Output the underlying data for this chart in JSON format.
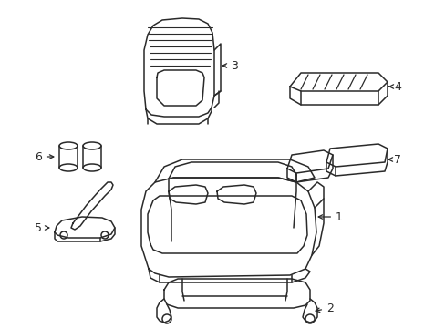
{
  "background_color": "#ffffff",
  "line_color": "#2a2a2a",
  "line_width": 1.1,
  "label_fontsize": 9,
  "figsize": [
    4.89,
    3.6
  ],
  "dpi": 100
}
